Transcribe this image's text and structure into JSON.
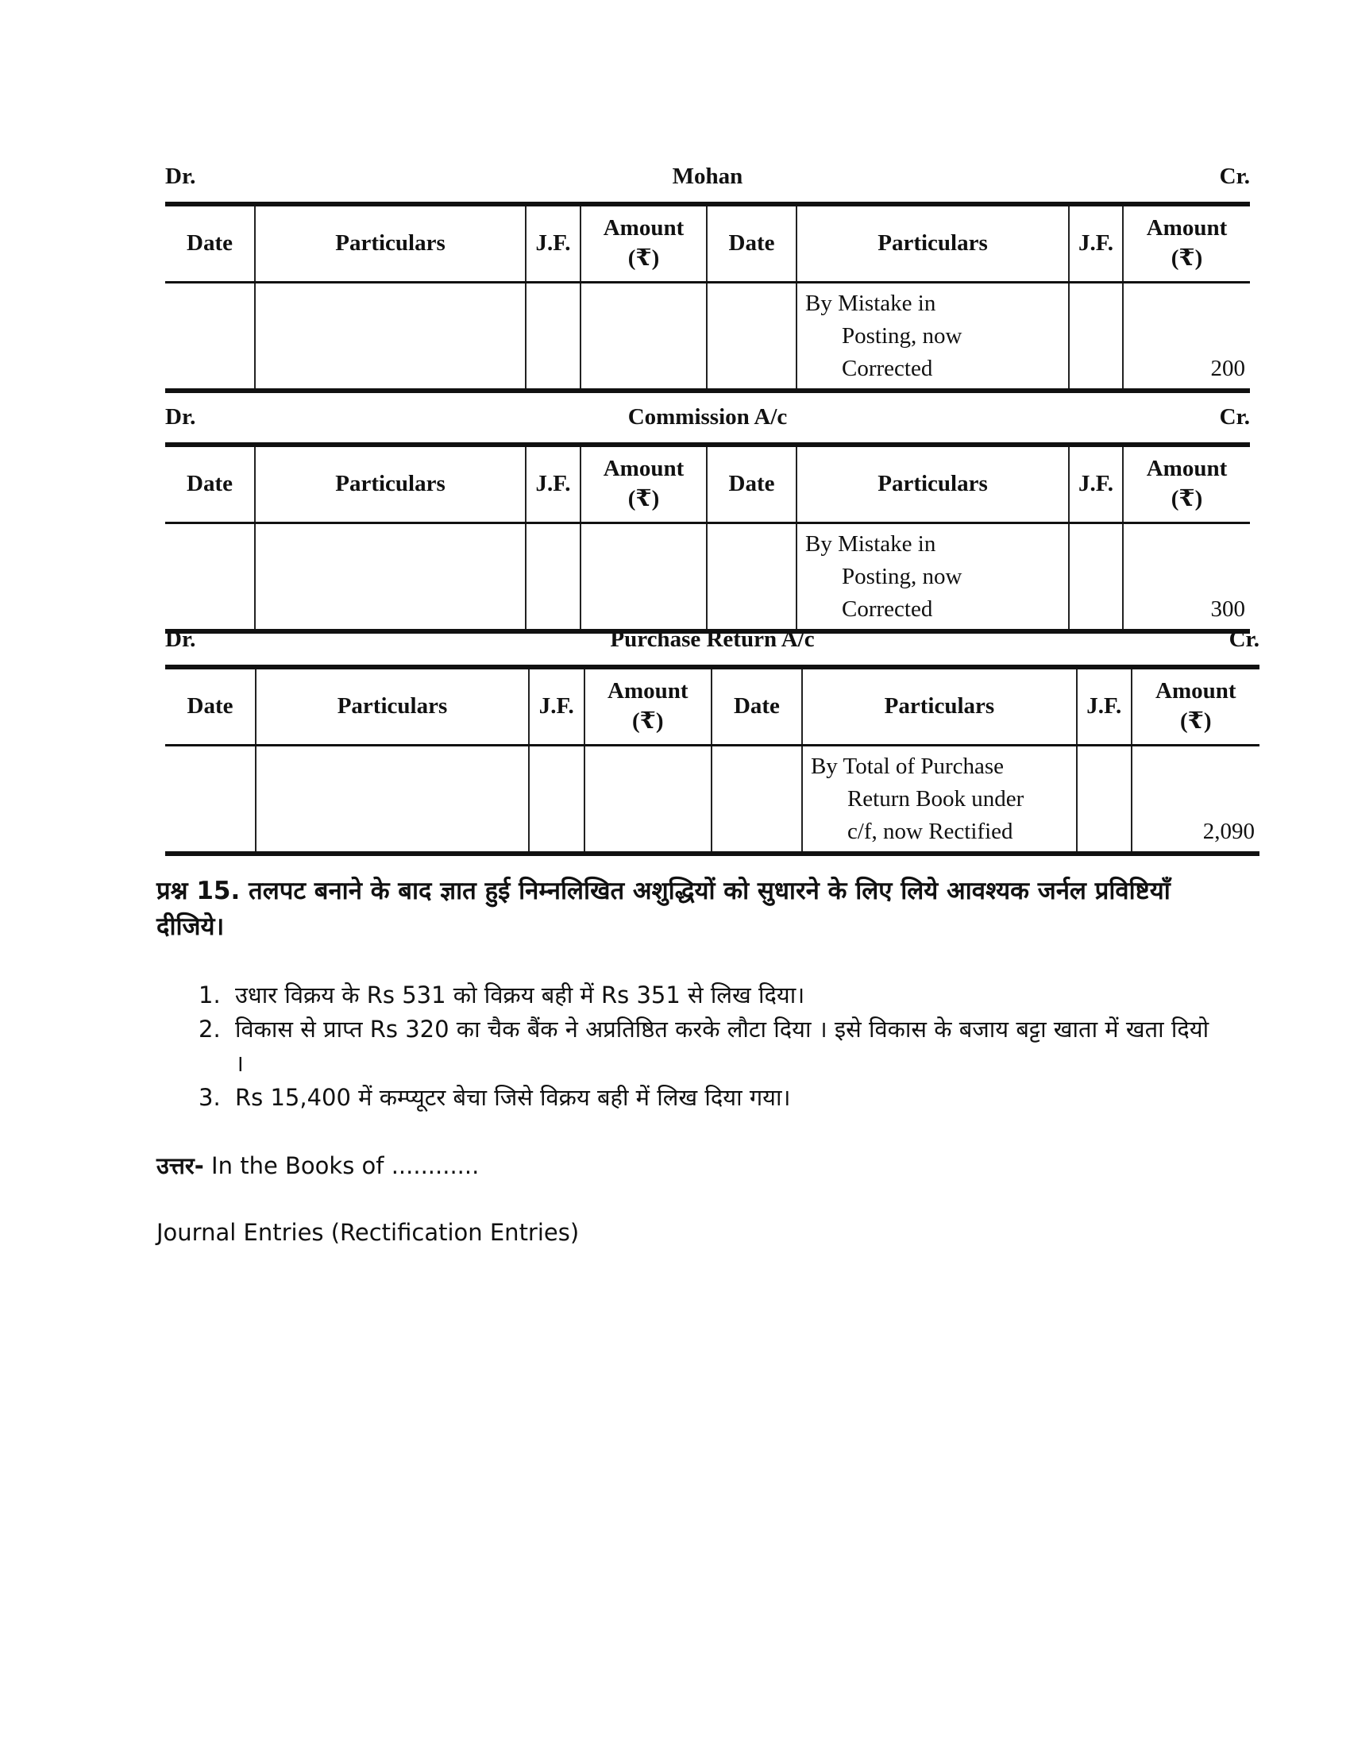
{
  "accounts": [
    {
      "dr": "Dr.",
      "name": "Mohan",
      "cr": "Cr.",
      "entry_lines": [
        "By Mistake in",
        "Posting, now",
        "Corrected"
      ],
      "amount": "200"
    },
    {
      "dr": "Dr.",
      "name": "Commission A/c",
      "cr": "Cr.",
      "entry_lines": [
        "By Mistake in",
        "Posting, now",
        "Corrected"
      ],
      "amount": "300"
    },
    {
      "dr": "Dr.",
      "name": "Purchase Return A/c",
      "cr": "Cr.",
      "entry_lines": [
        "By Total of Purchase",
        "Return Book under",
        "c/f, now Rectified"
      ],
      "amount": "2,090"
    }
  ],
  "columns": {
    "date": "Date",
    "particulars": "Particulars",
    "jf": "J.F.",
    "amount": "Amount",
    "currency": "(₹)"
  },
  "question": "प्रश्न 15. तलपट बनाने के बाद ज्ञात हुई निम्नलिखित अशुद्धियों को सुधारने के लिए लिये आवश्यक जर्नल प्रविष्टियाँ दीजिये।",
  "items": [
    {
      "num": "1.",
      "text": "उधार विक्रय के Rs 531 को विक्रय बही में Rs 351 से लिख दिया।"
    },
    {
      "num": "2.",
      "text": "विकास से प्राप्त Rs 320 का चैक बैंक ने अप्रतिष्ठित करके लौटा दिया । इसे विकास के बजाय बट्टा खाता में खता दियो ।"
    },
    {
      "num": "3.",
      "text": "Rs 15,400 में कम्प्यूटर बेचा जिसे विक्रय बही में लिख दिया गया।"
    }
  ],
  "answer_label": "उत्तर-",
  "answer_text": " In the Books of ............",
  "journal_title": "Journal Entries (Rectification Entries)"
}
